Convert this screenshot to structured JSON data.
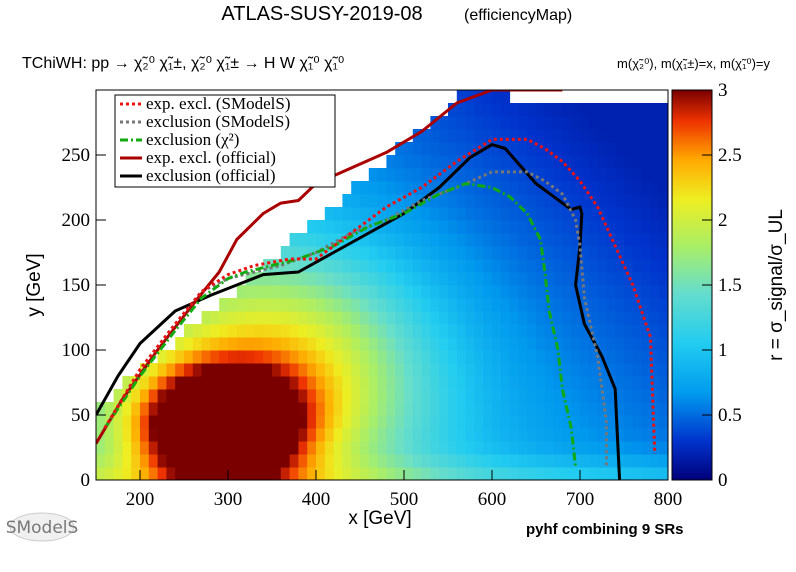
{
  "header": {
    "title": "ATLAS-SUSY-2019-08",
    "title_tag": "(efficiencyMap)",
    "process": "TChiWH: pp → χ̃₂⁰ χ̃₁±, χ̃₂⁰ χ̃₁± → H W χ̃₁⁰ χ̃₁⁰",
    "mass_legend": "m(χ̃₂⁰), m(χ̃₁±)=x, m(χ̃₁⁰)=y"
  },
  "footer": {
    "note": "pyhf combining 9 SRs",
    "logo": "SModelS"
  },
  "chart_data": {
    "type": "heatmap",
    "xlabel": "x [GeV]",
    "ylabel": "y [GeV]",
    "zlabel": "r = σ_signal/σ_UL",
    "xlim": [
      150,
      800
    ],
    "ylim": [
      0,
      300
    ],
    "zlim": [
      0,
      3
    ],
    "xticks": [
      "200",
      "300",
      "400",
      "500",
      "600",
      "700",
      "800"
    ],
    "yticks": [
      "0",
      "50",
      "100",
      "150",
      "200",
      "250"
    ],
    "zticks": [
      "0",
      "0.5",
      "1",
      "1.5",
      "2",
      "2.5",
      "3"
    ],
    "colormap": [
      "#00007a",
      "#0033cc",
      "#0099ee",
      "#22ccf0",
      "#66ddcc",
      "#aaee66",
      "#eeee22",
      "#ffaa00",
      "#ee3300",
      "#7a0000"
    ],
    "legend": [
      {
        "label": "exp. excl. (SModelS)",
        "color": "#ee1111",
        "style": "dotted"
      },
      {
        "label": "exclusion (SModelS)",
        "color": "#777777",
        "style": "dotted"
      },
      {
        "label": "exclusion (χ²)",
        "color": "#11aa11",
        "style": "dashdot"
      },
      {
        "label": "exp. excl. (official)",
        "color": "#aa0000",
        "style": "solid"
      },
      {
        "label": "exclusion (official)",
        "color": "#000000",
        "style": "solid"
      }
    ],
    "series": [
      {
        "name": "exclusion (official)",
        "x": [
          150,
          175,
          200,
          240,
          280,
          310,
          340,
          380,
          420,
          460,
          500,
          540,
          575,
          600,
          615,
          650,
          690,
          700,
          702,
          700,
          695,
          705,
          725,
          740,
          742,
          745
        ],
        "y": [
          50,
          80,
          105,
          130,
          142,
          150,
          158,
          160,
          175,
          190,
          205,
          225,
          248,
          258,
          255,
          228,
          208,
          210,
          205,
          180,
          150,
          120,
          95,
          70,
          40,
          0
        ]
      },
      {
        "name": "exp. excl. (official)",
        "x": [
          150,
          180,
          220,
          260,
          290,
          310,
          340,
          360,
          380,
          400,
          440,
          480,
          520,
          560,
          600,
          680
        ],
        "y": [
          28,
          62,
          100,
          135,
          160,
          185,
          205,
          213,
          215,
          228,
          240,
          252,
          268,
          290,
          300,
          300
        ]
      },
      {
        "name": "exclusion (SModelS)",
        "x": [
          160,
          200,
          240,
          270,
          300,
          330,
          360,
          400,
          440,
          480,
          520,
          560,
          600,
          640,
          660,
          680,
          695,
          700,
          705,
          720,
          730,
          730
        ],
        "y": [
          40,
          85,
          120,
          145,
          155,
          160,
          165,
          175,
          190,
          200,
          215,
          225,
          237,
          237,
          230,
          220,
          200,
          180,
          140,
          95,
          45,
          10
        ]
      },
      {
        "name": "exclusion (χ²)",
        "x": [
          160,
          200,
          240,
          270,
          300,
          320,
          350,
          380,
          420,
          460,
          500,
          540,
          570,
          600,
          620,
          640,
          655,
          660,
          665,
          675,
          680,
          690,
          695
        ],
        "y": [
          40,
          80,
          115,
          140,
          155,
          160,
          165,
          170,
          180,
          195,
          205,
          220,
          228,
          225,
          218,
          205,
          185,
          160,
          130,
          100,
          70,
          40,
          10
        ]
      },
      {
        "name": "exp. excl. (SModelS)",
        "x": [
          160,
          200,
          240,
          270,
          300,
          330,
          370,
          400,
          440,
          480,
          520,
          560,
          600,
          640,
          660,
          680,
          700,
          720,
          740,
          760,
          780,
          785
        ],
        "y": [
          40,
          85,
          120,
          145,
          158,
          165,
          170,
          170,
          190,
          210,
          225,
          245,
          262,
          262,
          255,
          245,
          230,
          210,
          180,
          150,
          110,
          20
        ]
      }
    ]
  }
}
